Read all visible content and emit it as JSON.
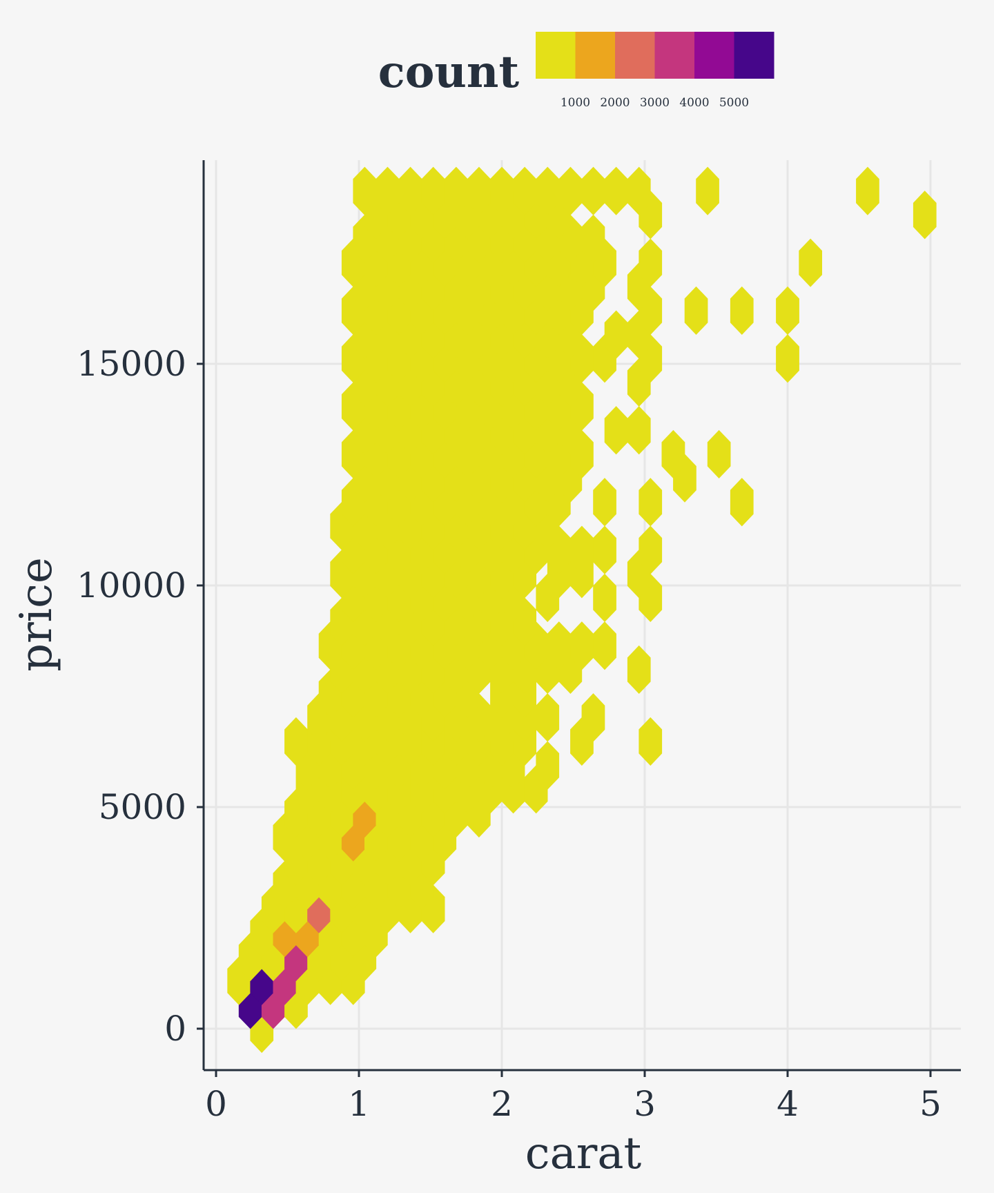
{
  "chart_data": {
    "type": "hexbin",
    "title": "",
    "xlabel": "carat",
    "ylabel": "price",
    "xlim": [
      -0.1,
      5.2
    ],
    "ylim": [
      -900,
      19900
    ],
    "x_ticks": [
      0,
      1,
      2,
      3,
      4,
      5
    ],
    "y_ticks": [
      0,
      5000,
      10000,
      15000
    ],
    "grid": true,
    "legend": {
      "title": "count",
      "placement": "top",
      "ticks": [
        1000,
        2000,
        3000,
        4000,
        5000
      ],
      "colors": [
        "#e4e018",
        "#eca61e",
        "#e06d5c",
        "#c4367e",
        "#920a94",
        "#46068a"
      ],
      "bin_breaks": [
        0,
        1000,
        2000,
        3000,
        4000,
        5000,
        6000
      ]
    },
    "hex_size": {
      "carat": 0.16,
      "price": 1080
    },
    "filled_rows": [
      {
        "price": 0,
        "carat_ranges": [
          [
            0.32,
            0.32
          ]
        ]
      },
      {
        "price": 540,
        "carat_ranges": [
          [
            0.24,
            0.56
          ]
        ]
      },
      {
        "price": 1080,
        "carat_ranges": [
          [
            0.16,
            0.96
          ]
        ]
      },
      {
        "price": 1620,
        "carat_ranges": [
          [
            0.24,
            1.12
          ]
        ]
      },
      {
        "price": 2160,
        "carat_ranges": [
          [
            0.32,
            1.2
          ]
        ]
      },
      {
        "price": 2700,
        "carat_ranges": [
          [
            0.4,
            1.52
          ]
        ]
      },
      {
        "price": 3240,
        "carat_ranges": [
          [
            0.48,
            1.44
          ]
        ]
      },
      {
        "price": 3780,
        "carat_ranges": [
          [
            0.56,
            1.6
          ]
        ]
      },
      {
        "price": 4320,
        "carat_ranges": [
          [
            0.48,
            1.68
          ]
        ]
      },
      {
        "price": 4860,
        "carat_ranges": [
          [
            0.56,
            1.92
          ]
        ]
      },
      {
        "price": 5400,
        "carat_ranges": [
          [
            0.64,
            2.24
          ]
        ]
      },
      {
        "price": 5940,
        "carat_ranges": [
          [
            0.64,
            2.16
          ],
          [
            2.32,
            2.32
          ]
        ]
      },
      {
        "price": 6480,
        "carat_ranges": [
          [
            0.56,
            2.24
          ],
          [
            2.56,
            2.56
          ],
          [
            3.04,
            3.04
          ]
        ]
      },
      {
        "price": 7020,
        "carat_ranges": [
          [
            0.72,
            2.32
          ],
          [
            2.64,
            2.64
          ]
        ]
      },
      {
        "price": 7560,
        "carat_ranges": [
          [
            0.8,
            1.84
          ],
          [
            2.0,
            2.16
          ]
        ]
      },
      {
        "price": 8100,
        "carat_ranges": [
          [
            0.88,
            2.48
          ],
          [
            2.96,
            2.96
          ]
        ]
      },
      {
        "price": 8640,
        "carat_ranges": [
          [
            0.8,
            2.72
          ]
        ]
      },
      {
        "price": 9180,
        "carat_ranges": [
          [
            0.88,
            2.24
          ]
        ]
      },
      {
        "price": 9720,
        "carat_ranges": [
          [
            0.96,
            2.16
          ],
          [
            2.32,
            2.4
          ],
          [
            2.72,
            2.72
          ],
          [
            3.04,
            3.04
          ]
        ]
      },
      {
        "price": 10260,
        "carat_ranges": [
          [
            0.88,
            2.24
          ],
          [
            2.4,
            2.64
          ],
          [
            2.96,
            2.96
          ]
        ]
      },
      {
        "price": 10800,
        "carat_ranges": [
          [
            0.96,
            2.72
          ],
          [
            3.04,
            3.04
          ]
        ]
      },
      {
        "price": 11340,
        "carat_ranges": [
          [
            0.88,
            2.32
          ]
        ]
      },
      {
        "price": 11880,
        "carat_ranges": [
          [
            0.96,
            2.4
          ],
          [
            2.72,
            2.72
          ],
          [
            3.04,
            3.04
          ],
          [
            3.68,
            3.68
          ]
        ]
      },
      {
        "price": 12420,
        "carat_ranges": [
          [
            1.04,
            2.48
          ],
          [
            3.28,
            3.28
          ]
        ]
      },
      {
        "price": 12960,
        "carat_ranges": [
          [
            0.96,
            2.56
          ],
          [
            3.2,
            3.2
          ],
          [
            3.52,
            3.52
          ]
        ]
      },
      {
        "price": 13500,
        "carat_ranges": [
          [
            1.04,
            2.48
          ],
          [
            2.8,
            2.96
          ]
        ]
      },
      {
        "price": 14040,
        "carat_ranges": [
          [
            0.96,
            2.56
          ]
        ]
      },
      {
        "price": 14580,
        "carat_ranges": [
          [
            1.04,
            2.48
          ],
          [
            2.96,
            2.96
          ]
        ]
      },
      {
        "price": 15120,
        "carat_ranges": [
          [
            0.96,
            2.72
          ],
          [
            3.04,
            3.04
          ],
          [
            4.0,
            4.0
          ]
        ]
      },
      {
        "price": 15660,
        "carat_ranges": [
          [
            1.04,
            2.48
          ],
          [
            2.8,
            2.96
          ]
        ]
      },
      {
        "price": 16200,
        "carat_ranges": [
          [
            0.96,
            2.56
          ],
          [
            3.04,
            3.04
          ],
          [
            3.36,
            3.36
          ],
          [
            3.68,
            3.68
          ],
          [
            4.0,
            4.0
          ]
        ]
      },
      {
        "price": 16740,
        "carat_ranges": [
          [
            1.04,
            2.64
          ],
          [
            2.96,
            2.96
          ]
        ]
      },
      {
        "price": 17280,
        "carat_ranges": [
          [
            0.96,
            2.72
          ],
          [
            3.04,
            3.04
          ],
          [
            4.16,
            4.16
          ]
        ]
      },
      {
        "price": 17820,
        "carat_ranges": [
          [
            1.04,
            2.64
          ]
        ]
      },
      {
        "price": 18360,
        "carat_ranges": [
          [
            1.12,
            2.48
          ],
          [
            3.04,
            3.04
          ],
          [
            4.96,
            4.96
          ]
        ]
      },
      {
        "price": 18900,
        "carat_ranges": [
          [
            1.04,
            2.96
          ],
          [
            3.44,
            3.44
          ],
          [
            4.56,
            4.56
          ]
        ]
      }
    ],
    "high_count_bins": [
      {
        "carat": 0.24,
        "price": 540,
        "count": 5400
      },
      {
        "carat": 0.32,
        "price": 1080,
        "count": 5200
      },
      {
        "carat": 0.4,
        "price": 540,
        "count": 3600
      },
      {
        "carat": 0.48,
        "price": 1080,
        "count": 3500
      },
      {
        "carat": 0.56,
        "price": 1620,
        "count": 3700
      },
      {
        "carat": 0.48,
        "price": 2160,
        "count": 1600
      },
      {
        "carat": 0.64,
        "price": 2160,
        "count": 1500
      },
      {
        "carat": 0.72,
        "price": 2700,
        "count": 2500
      },
      {
        "carat": 0.96,
        "price": 4320,
        "count": 1400
      },
      {
        "carat": 1.04,
        "price": 4860,
        "count": 1300
      }
    ],
    "default_count": 300
  }
}
